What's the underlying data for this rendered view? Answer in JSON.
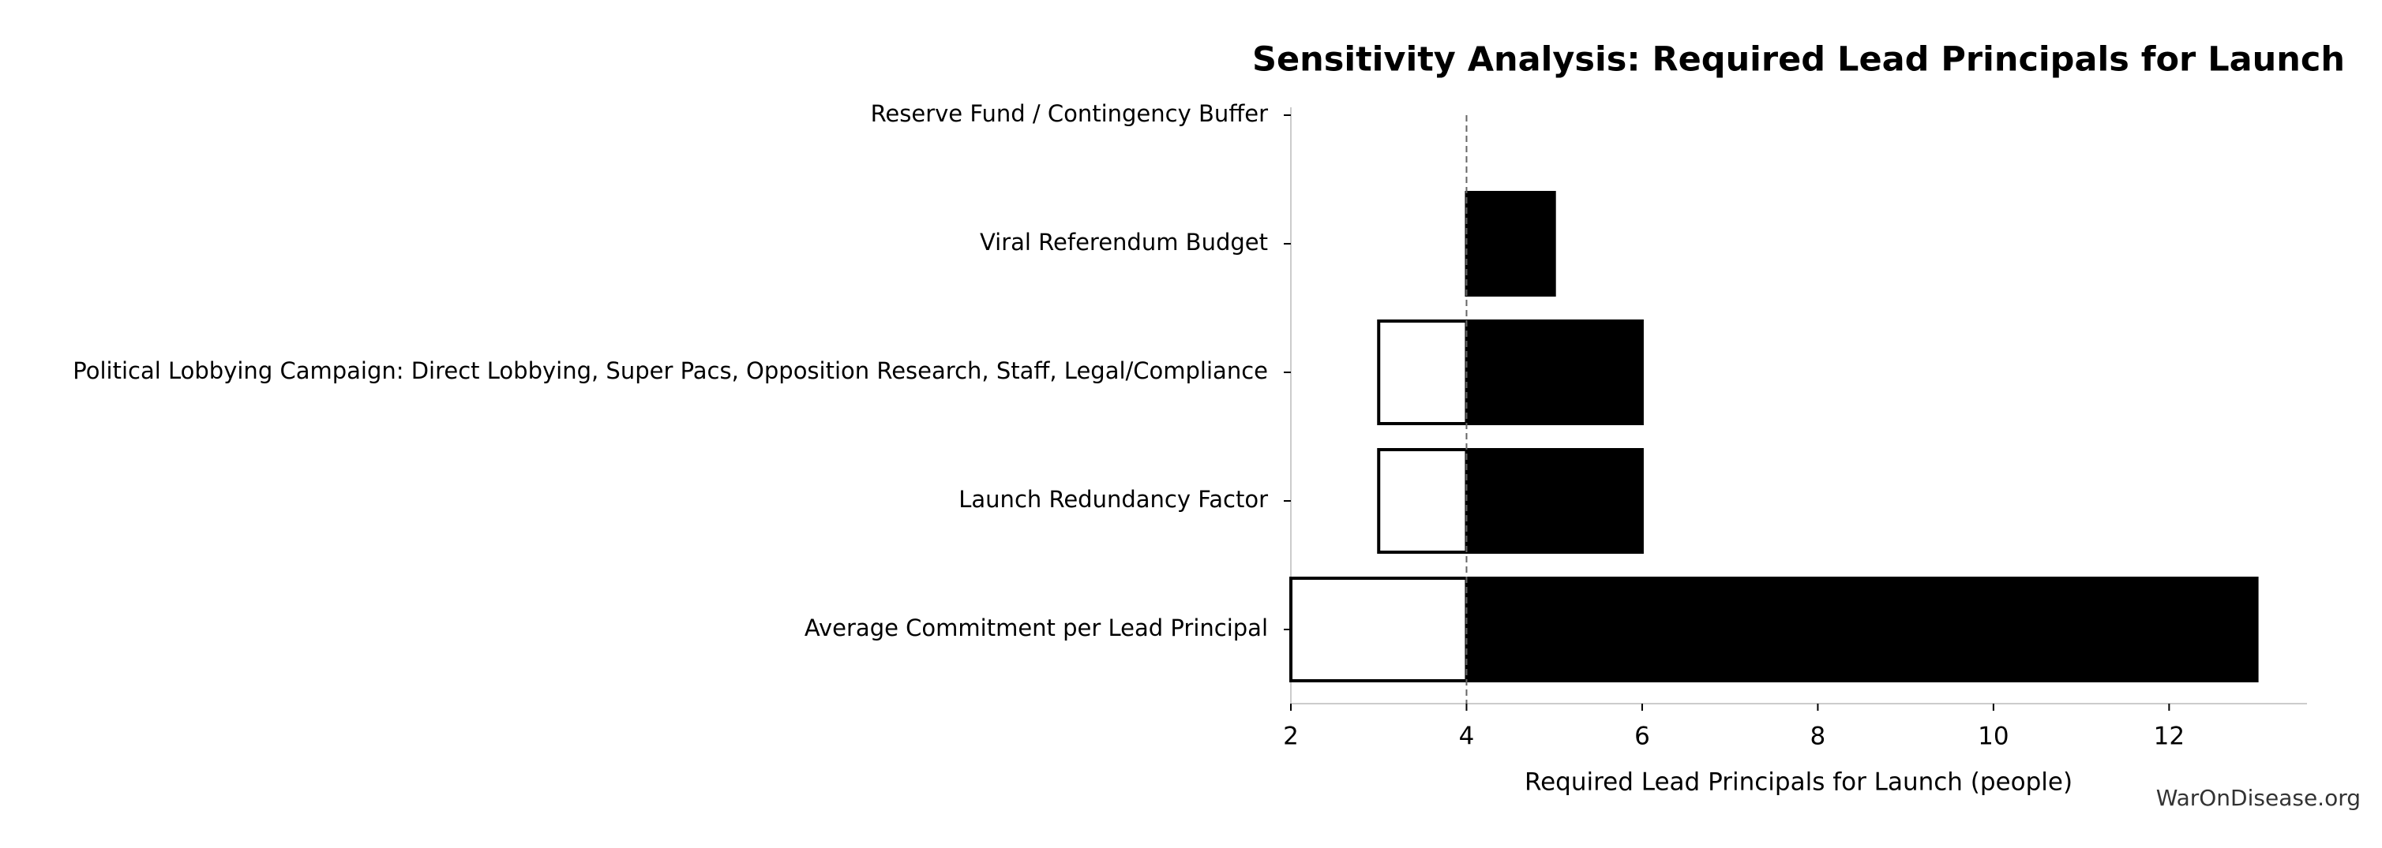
{
  "chart_data": {
    "type": "tornado",
    "title": "Sensitivity Analysis: Required Lead Principals for Launch",
    "x_label": "Required Lead Principals for Launch (people)",
    "source": "WarOnDisease.org",
    "categories": [
      "Reserve Fund / Contingency Buffer",
      "Viral Referendum Budget",
      "Political Lobbying Campaign: Direct Lobbying, Super Pacs, Opposition Research, Staff, Legal/Compliance",
      "Launch Redundancy Factor",
      "Average Commitment per Lead Principal"
    ],
    "baseline": 4,
    "series": [
      {
        "color": "#ffffff",
        "values": [
          4,
          4,
          3,
          3,
          2
        ]
      },
      {
        "color": "#000000",
        "values": [
          4,
          5,
          6,
          6,
          13
        ]
      }
    ],
    "xlim": [
      2,
      13.57
    ],
    "xticks": [
      2,
      4,
      6,
      8,
      10,
      12
    ]
  }
}
